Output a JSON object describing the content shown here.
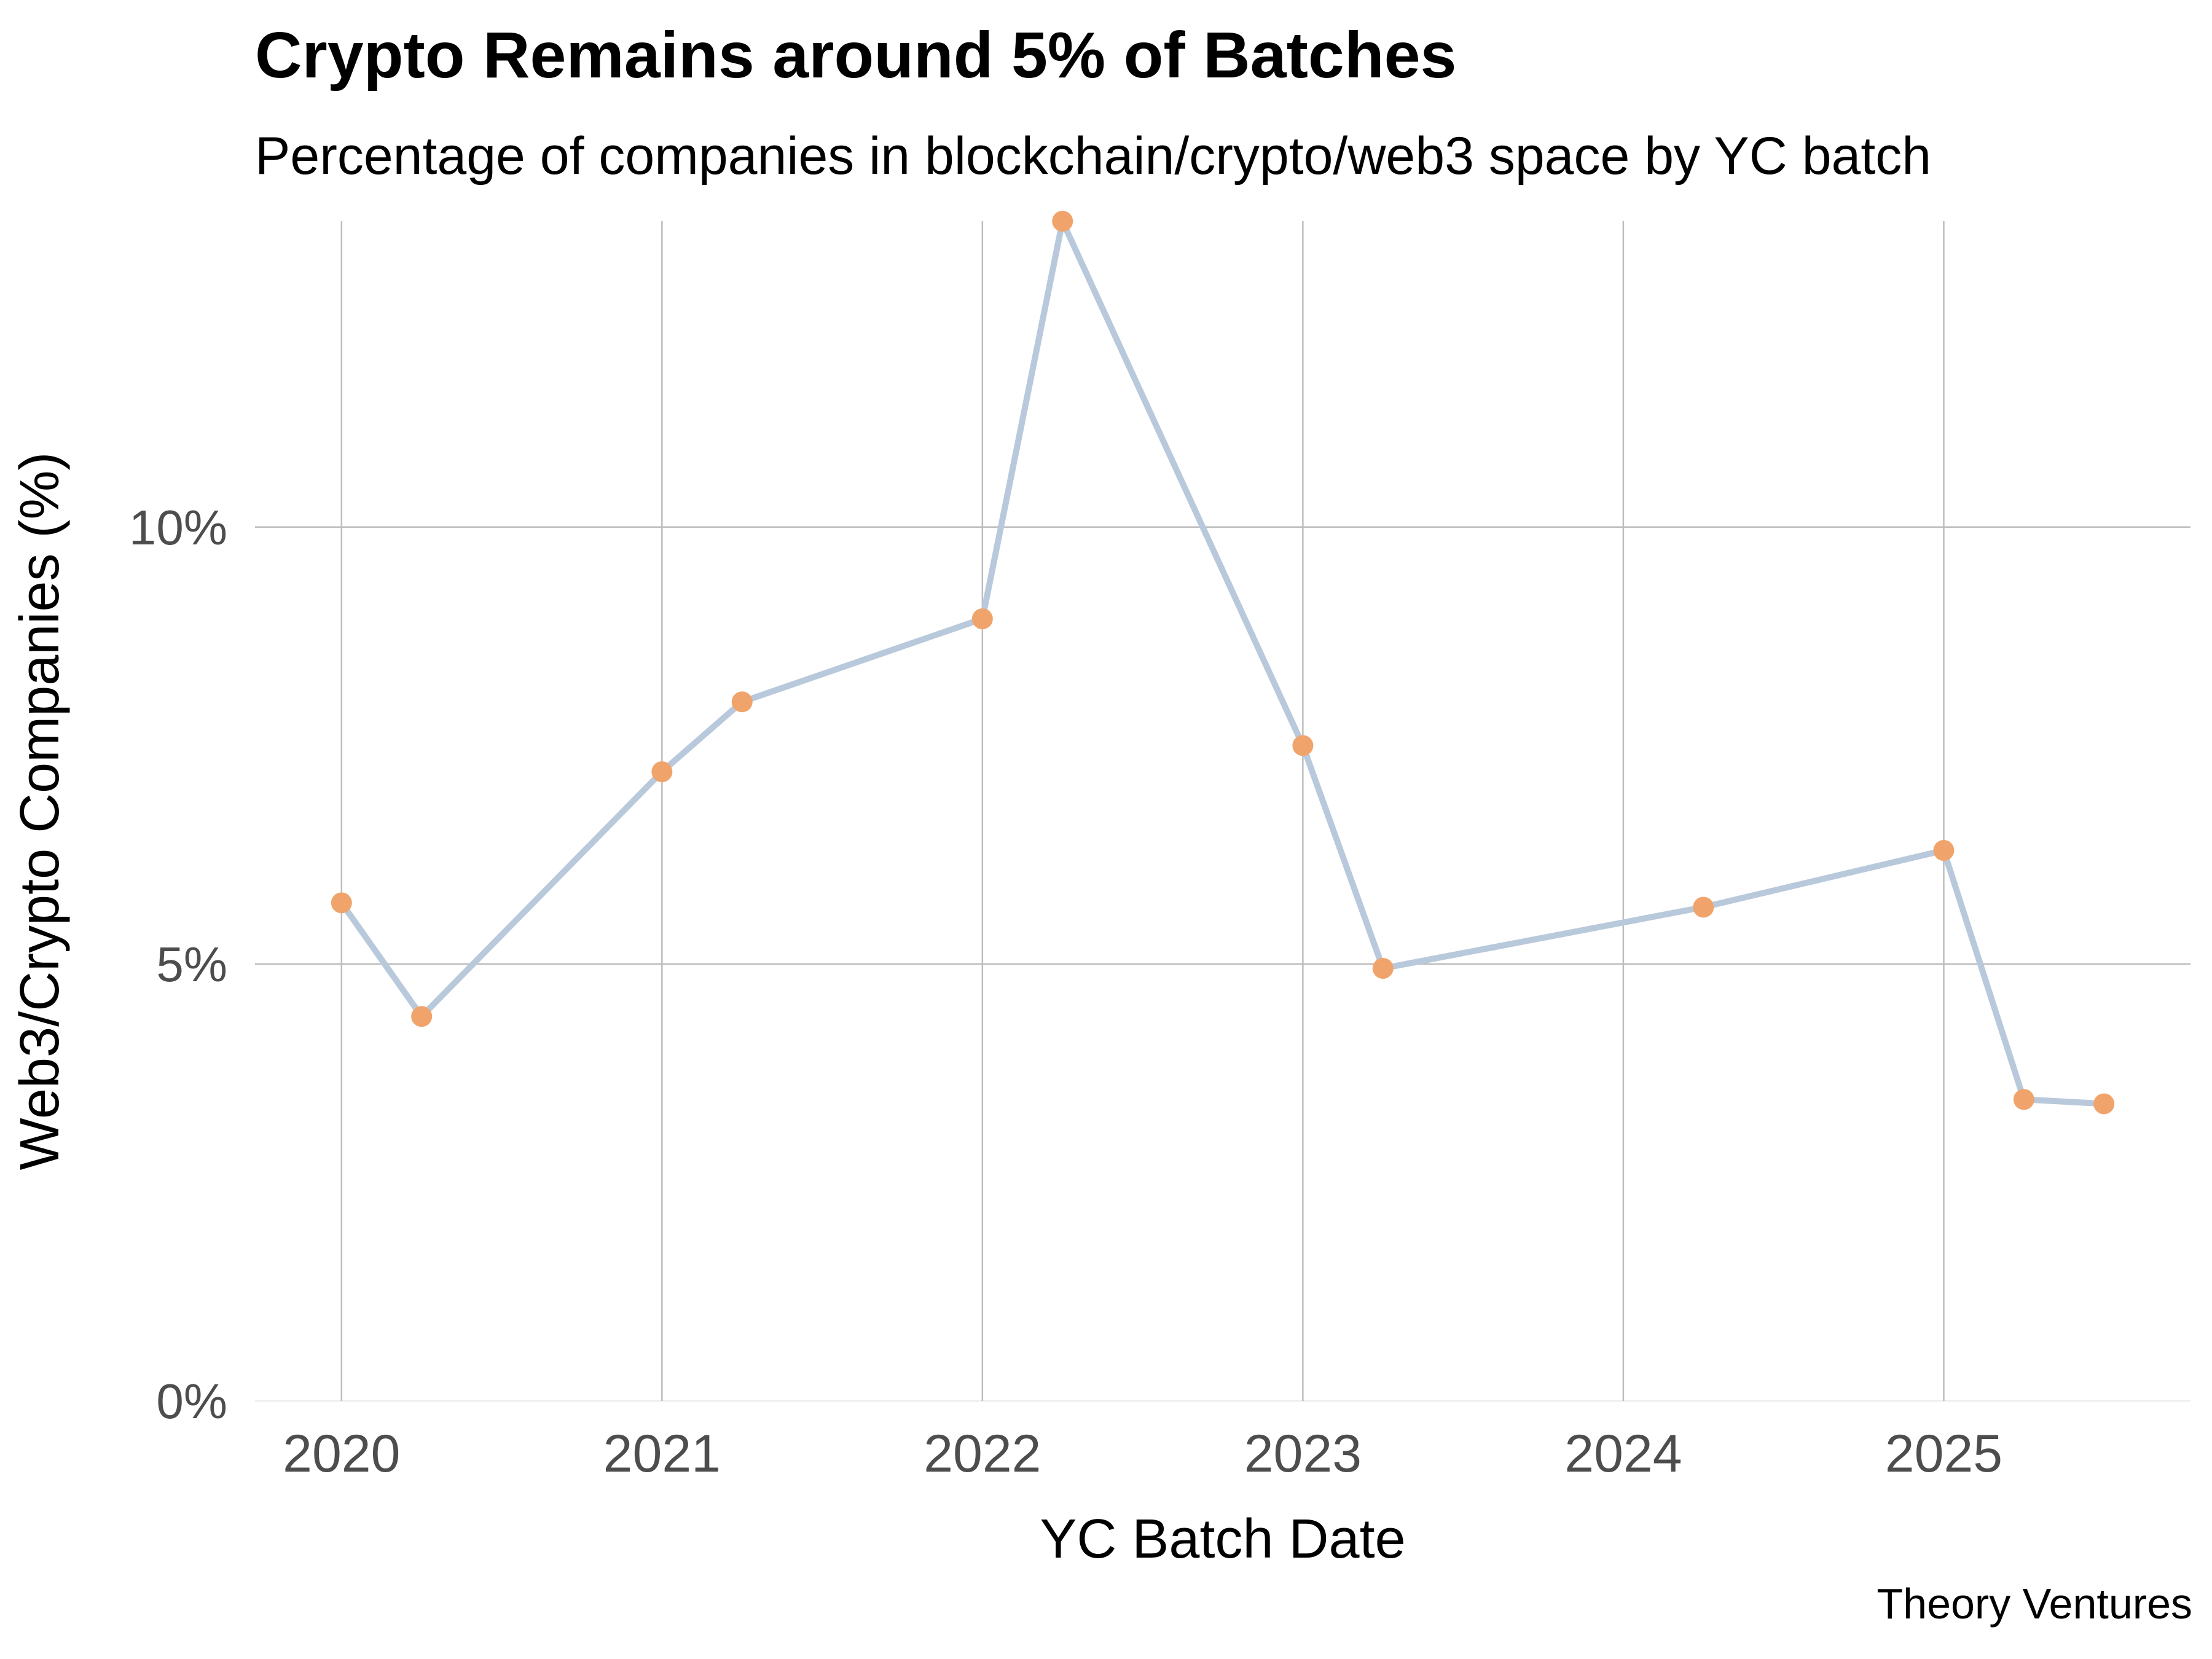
{
  "chart_data": {
    "type": "line",
    "title": "Crypto Remains around 5% of Batches",
    "subtitle": "Percentage of companies in blockchain/crypto/web3 space by YC batch",
    "caption": "Theory Ventures",
    "xlabel": "YC Batch Date",
    "ylabel": "Web3/Crypto Companies (%)",
    "x_tick_labels": [
      "2020",
      "2021",
      "2022",
      "2023",
      "2024",
      "2025"
    ],
    "x_ticks": [
      2020,
      2021,
      2022,
      2023,
      2024,
      2025
    ],
    "y_tick_labels": [
      "0%",
      "5%",
      "10%"
    ],
    "y_ticks": [
      0,
      5,
      10
    ],
    "xlim": [
      2019.73,
      2025.77
    ],
    "ylim": [
      0,
      13.5
    ],
    "grid": true,
    "legend": "none",
    "line_color": "#b9c9dc",
    "point_color": "#f0a46c",
    "series": [
      {
        "points": [
          {
            "date": "2020-01",
            "x": 2020.0,
            "y": 5.7
          },
          {
            "date": "2020-04",
            "x": 2020.25,
            "y": 4.4
          },
          {
            "date": "2021-01",
            "x": 2021.0,
            "y": 7.2
          },
          {
            "date": "2021-04",
            "x": 2021.25,
            "y": 8.0
          },
          {
            "date": "2022-01",
            "x": 2022.0,
            "y": 8.95
          },
          {
            "date": "2022-04",
            "x": 2022.25,
            "y": 13.5
          },
          {
            "date": "2023-01",
            "x": 2023.0,
            "y": 7.5
          },
          {
            "date": "2023-04",
            "x": 2023.25,
            "y": 4.95
          },
          {
            "date": "2024-04",
            "x": 2024.25,
            "y": 5.65
          },
          {
            "date": "2025-01",
            "x": 2025.0,
            "y": 6.3
          },
          {
            "date": "2025-04",
            "x": 2025.25,
            "y": 3.45
          },
          {
            "date": "2025-07",
            "x": 2025.5,
            "y": 3.4
          }
        ]
      }
    ]
  }
}
